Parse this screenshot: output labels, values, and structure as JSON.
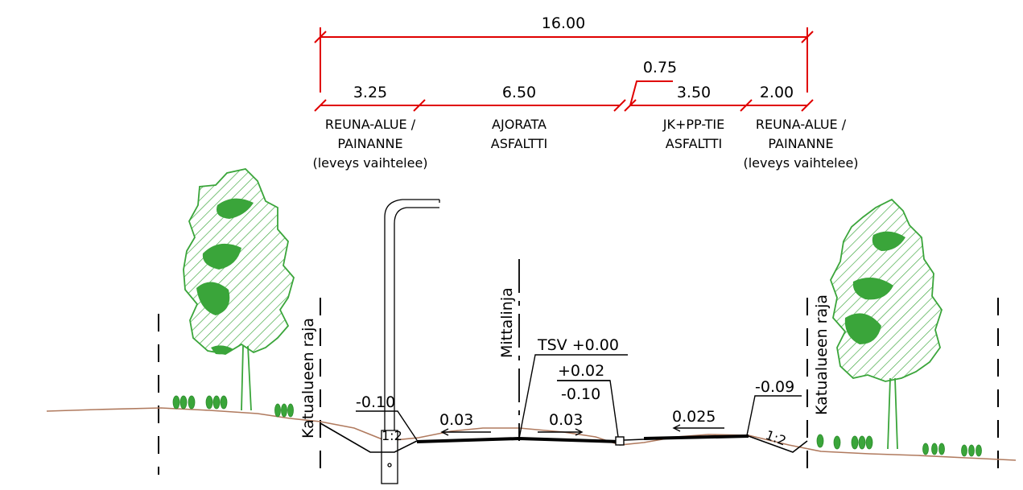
{
  "dimensions": {
    "total": "16.00",
    "gap": "0.75",
    "segments": [
      "3.25",
      "6.50",
      "3.50",
      "2.00"
    ]
  },
  "zones": {
    "left_edge": [
      "REUNA-ALUE /",
      "PAINANNE",
      "(leveys vaihtelee)"
    ],
    "carriageway": [
      "AJORATA",
      "ASFALTTI"
    ],
    "cycle_path": [
      "JK+PP-TIE",
      "ASFALTTI"
    ],
    "right_edge": [
      "REUNA-ALUE /",
      "PAINANNE",
      "(leveys vaihtelee)"
    ]
  },
  "section": {
    "boundary_left": "Katualueen raja",
    "boundary_right": "Katualueen raja",
    "centerline": "Mittalinja",
    "tsv": "TSV +0.00",
    "tol_plus": "+0.02",
    "tol_minus": "-0.10",
    "left_ditch": "-0.10",
    "left_slope": "1:2",
    "right_ditch": "-0.09",
    "right_slope": "1:2",
    "slope_left_lane": "0.03",
    "slope_right_lane": "0.03",
    "slope_path": "0.025"
  },
  "colors": {
    "dimension": "#e00000",
    "tree": "#3aa53a",
    "ground": "#b07a5e",
    "line": "#000000"
  }
}
